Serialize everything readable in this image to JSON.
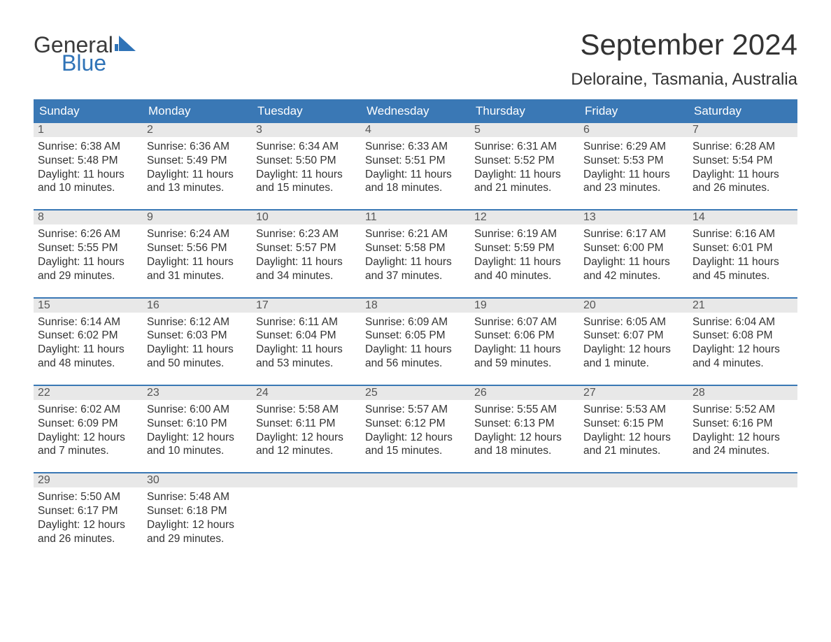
{
  "logo": {
    "word1": "General",
    "word2": "Blue",
    "accent_color": "#2f73b7",
    "text_color": "#3a3a3a"
  },
  "title": "September 2024",
  "location": "Deloraine, Tasmania, Australia",
  "colors": {
    "header_bg": "#3a78b5",
    "header_text": "#ffffff",
    "daynum_bg": "#e8e8e8",
    "week_border": "#3a78b5",
    "body_text": "#333333",
    "daynum_text": "#555555",
    "page_bg": "#ffffff"
  },
  "days_of_week": [
    "Sunday",
    "Monday",
    "Tuesday",
    "Wednesday",
    "Thursday",
    "Friday",
    "Saturday"
  ],
  "weeks": [
    [
      {
        "n": "1",
        "sunrise": "Sunrise: 6:38 AM",
        "sunset": "Sunset: 5:48 PM",
        "dl1": "Daylight: 11 hours",
        "dl2": "and 10 minutes."
      },
      {
        "n": "2",
        "sunrise": "Sunrise: 6:36 AM",
        "sunset": "Sunset: 5:49 PM",
        "dl1": "Daylight: 11 hours",
        "dl2": "and 13 minutes."
      },
      {
        "n": "3",
        "sunrise": "Sunrise: 6:34 AM",
        "sunset": "Sunset: 5:50 PM",
        "dl1": "Daylight: 11 hours",
        "dl2": "and 15 minutes."
      },
      {
        "n": "4",
        "sunrise": "Sunrise: 6:33 AM",
        "sunset": "Sunset: 5:51 PM",
        "dl1": "Daylight: 11 hours",
        "dl2": "and 18 minutes."
      },
      {
        "n": "5",
        "sunrise": "Sunrise: 6:31 AM",
        "sunset": "Sunset: 5:52 PM",
        "dl1": "Daylight: 11 hours",
        "dl2": "and 21 minutes."
      },
      {
        "n": "6",
        "sunrise": "Sunrise: 6:29 AM",
        "sunset": "Sunset: 5:53 PM",
        "dl1": "Daylight: 11 hours",
        "dl2": "and 23 minutes."
      },
      {
        "n": "7",
        "sunrise": "Sunrise: 6:28 AM",
        "sunset": "Sunset: 5:54 PM",
        "dl1": "Daylight: 11 hours",
        "dl2": "and 26 minutes."
      }
    ],
    [
      {
        "n": "8",
        "sunrise": "Sunrise: 6:26 AM",
        "sunset": "Sunset: 5:55 PM",
        "dl1": "Daylight: 11 hours",
        "dl2": "and 29 minutes."
      },
      {
        "n": "9",
        "sunrise": "Sunrise: 6:24 AM",
        "sunset": "Sunset: 5:56 PM",
        "dl1": "Daylight: 11 hours",
        "dl2": "and 31 minutes."
      },
      {
        "n": "10",
        "sunrise": "Sunrise: 6:23 AM",
        "sunset": "Sunset: 5:57 PM",
        "dl1": "Daylight: 11 hours",
        "dl2": "and 34 minutes."
      },
      {
        "n": "11",
        "sunrise": "Sunrise: 6:21 AM",
        "sunset": "Sunset: 5:58 PM",
        "dl1": "Daylight: 11 hours",
        "dl2": "and 37 minutes."
      },
      {
        "n": "12",
        "sunrise": "Sunrise: 6:19 AM",
        "sunset": "Sunset: 5:59 PM",
        "dl1": "Daylight: 11 hours",
        "dl2": "and 40 minutes."
      },
      {
        "n": "13",
        "sunrise": "Sunrise: 6:17 AM",
        "sunset": "Sunset: 6:00 PM",
        "dl1": "Daylight: 11 hours",
        "dl2": "and 42 minutes."
      },
      {
        "n": "14",
        "sunrise": "Sunrise: 6:16 AM",
        "sunset": "Sunset: 6:01 PM",
        "dl1": "Daylight: 11 hours",
        "dl2": "and 45 minutes."
      }
    ],
    [
      {
        "n": "15",
        "sunrise": "Sunrise: 6:14 AM",
        "sunset": "Sunset: 6:02 PM",
        "dl1": "Daylight: 11 hours",
        "dl2": "and 48 minutes."
      },
      {
        "n": "16",
        "sunrise": "Sunrise: 6:12 AM",
        "sunset": "Sunset: 6:03 PM",
        "dl1": "Daylight: 11 hours",
        "dl2": "and 50 minutes."
      },
      {
        "n": "17",
        "sunrise": "Sunrise: 6:11 AM",
        "sunset": "Sunset: 6:04 PM",
        "dl1": "Daylight: 11 hours",
        "dl2": "and 53 minutes."
      },
      {
        "n": "18",
        "sunrise": "Sunrise: 6:09 AM",
        "sunset": "Sunset: 6:05 PM",
        "dl1": "Daylight: 11 hours",
        "dl2": "and 56 minutes."
      },
      {
        "n": "19",
        "sunrise": "Sunrise: 6:07 AM",
        "sunset": "Sunset: 6:06 PM",
        "dl1": "Daylight: 11 hours",
        "dl2": "and 59 minutes."
      },
      {
        "n": "20",
        "sunrise": "Sunrise: 6:05 AM",
        "sunset": "Sunset: 6:07 PM",
        "dl1": "Daylight: 12 hours",
        "dl2": "and 1 minute."
      },
      {
        "n": "21",
        "sunrise": "Sunrise: 6:04 AM",
        "sunset": "Sunset: 6:08 PM",
        "dl1": "Daylight: 12 hours",
        "dl2": "and 4 minutes."
      }
    ],
    [
      {
        "n": "22",
        "sunrise": "Sunrise: 6:02 AM",
        "sunset": "Sunset: 6:09 PM",
        "dl1": "Daylight: 12 hours",
        "dl2": "and 7 minutes."
      },
      {
        "n": "23",
        "sunrise": "Sunrise: 6:00 AM",
        "sunset": "Sunset: 6:10 PM",
        "dl1": "Daylight: 12 hours",
        "dl2": "and 10 minutes."
      },
      {
        "n": "24",
        "sunrise": "Sunrise: 5:58 AM",
        "sunset": "Sunset: 6:11 PM",
        "dl1": "Daylight: 12 hours",
        "dl2": "and 12 minutes."
      },
      {
        "n": "25",
        "sunrise": "Sunrise: 5:57 AM",
        "sunset": "Sunset: 6:12 PM",
        "dl1": "Daylight: 12 hours",
        "dl2": "and 15 minutes."
      },
      {
        "n": "26",
        "sunrise": "Sunrise: 5:55 AM",
        "sunset": "Sunset: 6:13 PM",
        "dl1": "Daylight: 12 hours",
        "dl2": "and 18 minutes."
      },
      {
        "n": "27",
        "sunrise": "Sunrise: 5:53 AM",
        "sunset": "Sunset: 6:15 PM",
        "dl1": "Daylight: 12 hours",
        "dl2": "and 21 minutes."
      },
      {
        "n": "28",
        "sunrise": "Sunrise: 5:52 AM",
        "sunset": "Sunset: 6:16 PM",
        "dl1": "Daylight: 12 hours",
        "dl2": "and 24 minutes."
      }
    ],
    [
      {
        "n": "29",
        "sunrise": "Sunrise: 5:50 AM",
        "sunset": "Sunset: 6:17 PM",
        "dl1": "Daylight: 12 hours",
        "dl2": "and 26 minutes."
      },
      {
        "n": "30",
        "sunrise": "Sunrise: 5:48 AM",
        "sunset": "Sunset: 6:18 PM",
        "dl1": "Daylight: 12 hours",
        "dl2": "and 29 minutes."
      },
      null,
      null,
      null,
      null,
      null
    ]
  ]
}
